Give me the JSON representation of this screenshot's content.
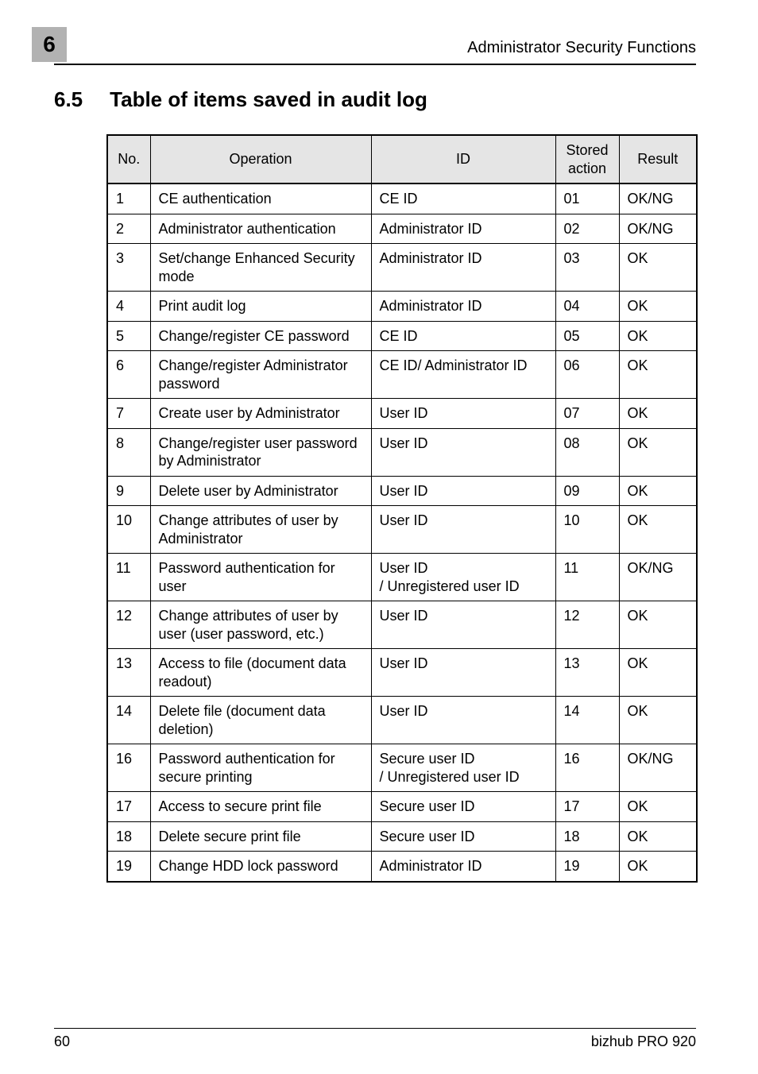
{
  "chapter_number": "6",
  "header_title": "Administrator Security Functions",
  "section_number": "6.5",
  "section_title": "Table of items saved in audit log",
  "table": {
    "columns": {
      "no": "No.",
      "operation": "Operation",
      "id": "ID",
      "stored": "Stored action",
      "result": "Result"
    },
    "rows": [
      {
        "no": "1",
        "op": "CE authentication",
        "id": "CE ID",
        "id_small": false,
        "act": "01",
        "res": "OK/NG"
      },
      {
        "no": "2",
        "op": "Administrator authentication",
        "id": "Administrator ID",
        "id_small": false,
        "act": "02",
        "res": "OK/NG"
      },
      {
        "no": "3",
        "op": "Set/change Enhanced Security mode",
        "id": "Administrator ID",
        "id_small": false,
        "act": "03",
        "res": "OK"
      },
      {
        "no": "4",
        "op": "Print audit log",
        "id": "Administrator ID",
        "id_small": false,
        "act": "04",
        "res": "OK"
      },
      {
        "no": "5",
        "op": "Change/register CE password",
        "id": "CE ID",
        "id_small": false,
        "act": "05",
        "res": "OK"
      },
      {
        "no": "6",
        "op": "Change/register Administrator password",
        "id": "CE ID/ Administrator ID",
        "id_small": false,
        "act": "06",
        "res": "OK"
      },
      {
        "no": "7",
        "op": "Create user by Administrator",
        "id": "User ID",
        "id_small": false,
        "act": "07",
        "res": "OK"
      },
      {
        "no": "8",
        "op": "Change/register user password by Administrator",
        "id": "User ID",
        "id_small": false,
        "act": "08",
        "res": "OK"
      },
      {
        "no": "9",
        "op": "Delete user by Administrator",
        "id": "User ID",
        "id_small": false,
        "act": "09",
        "res": "OK"
      },
      {
        "no": "10",
        "op": "Change attributes of user by Administrator",
        "id": "User ID",
        "id_small": false,
        "act": "10",
        "res": "OK"
      },
      {
        "no": "11",
        "op": "Password authentication for user",
        "id": "User ID\n/ Unregistered user ID",
        "id_small": true,
        "act": "11",
        "res": "OK/NG"
      },
      {
        "no": "12",
        "op": "Change attributes of user by user (user password, etc.)",
        "id": "User ID",
        "id_small": false,
        "act": "12",
        "res": "OK"
      },
      {
        "no": "13",
        "op": "Access to file (document data readout)",
        "id": "User ID",
        "id_small": false,
        "act": "13",
        "res": "OK"
      },
      {
        "no": "14",
        "op": "Delete file (document data deletion)",
        "id": "User ID",
        "id_small": false,
        "act": "14",
        "res": "OK"
      },
      {
        "no": "16",
        "op": "Password authentication for secure printing",
        "id": "Secure user ID\n/ Unregistered user ID",
        "id_small": true,
        "act": "16",
        "res": "OK/NG"
      },
      {
        "no": "17",
        "op": "Access to secure print file",
        "id": "Secure user ID",
        "id_small": false,
        "act": "17",
        "res": "OK"
      },
      {
        "no": "18",
        "op": "Delete secure print file",
        "id": "Secure user ID",
        "id_small": false,
        "act": "18",
        "res": "OK"
      },
      {
        "no": "19",
        "op": "Change HDD lock password",
        "id": "Administrator ID",
        "id_small": false,
        "act": "19",
        "res": "OK"
      }
    ]
  },
  "footer": {
    "page_number": "60",
    "product": "bizhub PRO 920"
  }
}
